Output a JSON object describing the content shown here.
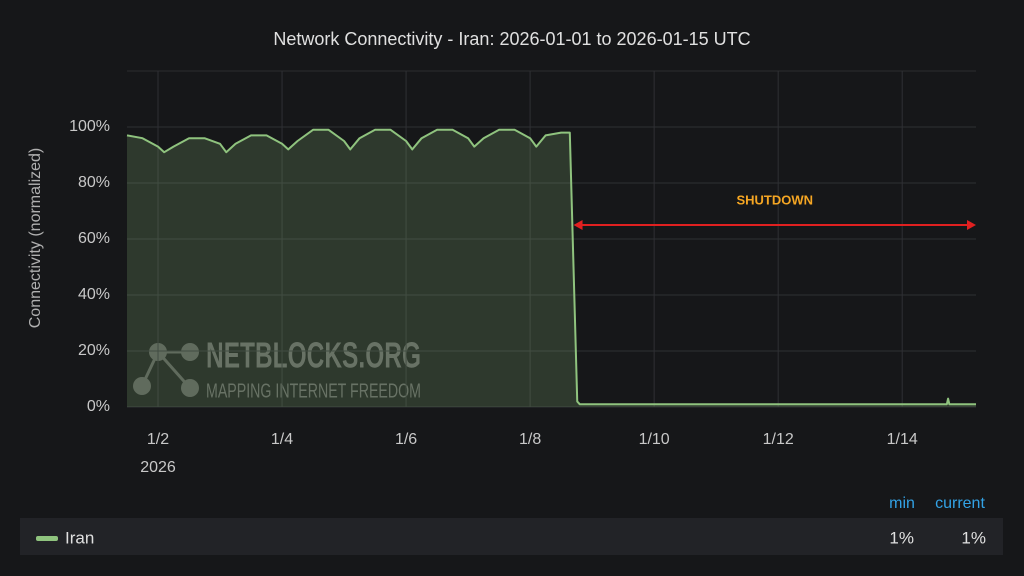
{
  "chart_data": {
    "type": "area",
    "title": "Network Connectivity - Iran: 2026-01-01 to 2026-01-15 UTC",
    "y_label": "Connectivity (normalized)",
    "x_sublabel": "2026",
    "x": [
      1.5,
      1.75,
      2.0,
      2.1,
      2.25,
      2.5,
      2.75,
      3.0,
      3.1,
      3.25,
      3.5,
      3.75,
      4.0,
      4.1,
      4.25,
      4.5,
      4.75,
      5.0,
      5.1,
      5.25,
      5.5,
      5.75,
      6.0,
      6.1,
      6.25,
      6.5,
      6.75,
      7.0,
      7.1,
      7.25,
      7.5,
      7.75,
      8.0,
      8.1,
      8.25,
      8.5,
      8.64,
      8.7,
      8.76,
      8.8,
      10,
      12,
      14,
      14.72,
      14.74,
      14.76,
      15.19
    ],
    "series": [
      {
        "name": "Iran",
        "color": "#8fc37e",
        "values": [
          97,
          96,
          93,
          91,
          93,
          96,
          96,
          94,
          91,
          94,
          97,
          97,
          94,
          92,
          95,
          99,
          99,
          95,
          92,
          96,
          99,
          99,
          95,
          92,
          96,
          99,
          99,
          96,
          93,
          96,
          99,
          99,
          96,
          93,
          97,
          98,
          98,
          50,
          2,
          1,
          1,
          1,
          1,
          1,
          3,
          1,
          1
        ]
      }
    ],
    "xlim": [
      1.5,
      15.19
    ],
    "xticks": [
      {
        "value": 2,
        "label": "1/2"
      },
      {
        "value": 4,
        "label": "1/4"
      },
      {
        "value": 6,
        "label": "1/6"
      },
      {
        "value": 8,
        "label": "1/8"
      },
      {
        "value": 10,
        "label": "1/10"
      },
      {
        "value": 12,
        "label": "1/12"
      },
      {
        "value": 14,
        "label": "1/14"
      }
    ],
    "ylim": [
      0,
      120
    ],
    "yticks": [
      {
        "value": 0,
        "label": "0%"
      },
      {
        "value": 20,
        "label": "20%"
      },
      {
        "value": 40,
        "label": "40%"
      },
      {
        "value": 60,
        "label": "60%"
      },
      {
        "value": 80,
        "label": "80%"
      },
      {
        "value": 100,
        "label": "100%"
      }
    ],
    "grid": true,
    "annotation": {
      "text": "SHUTDOWN",
      "x_start": 8.7,
      "x_end": 15.19,
      "y": 65,
      "color": "#e02020",
      "text_color": "#f5a623"
    },
    "watermark": {
      "name": "NETBLOCKS.ORG",
      "tagline": "MAPPING INTERNET FREEDOM"
    },
    "legend": {
      "columns": [
        "min",
        "current"
      ],
      "values": [
        1,
        1
      ],
      "value_labels": [
        "1%",
        "1%"
      ]
    }
  }
}
